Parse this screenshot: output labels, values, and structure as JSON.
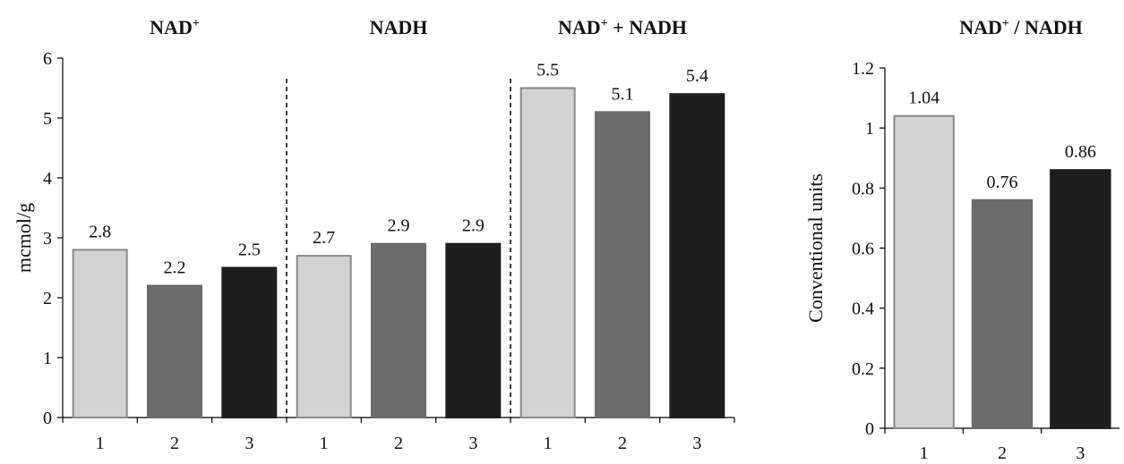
{
  "chart_data": [
    {
      "type": "bar",
      "ylabel": "mcmol/g",
      "ylim": [
        0,
        6
      ],
      "yticks": [
        "0",
        "1",
        "2",
        "3",
        "4",
        "5",
        "6"
      ],
      "categories": [
        "1",
        "2",
        "3"
      ],
      "colors": [
        "#d3d3d3",
        "#6b6b6b",
        "#1e1e1e"
      ],
      "edge_colors": [
        "#8a8a8a",
        "#6b6b6b",
        "#1e1e1e"
      ],
      "groups": [
        {
          "title_base": "NAD",
          "title_sup": "+",
          "title_rest": "",
          "values": [
            2.8,
            2.2,
            2.5
          ],
          "labels": [
            "2.8",
            "2.2",
            "2.5"
          ]
        },
        {
          "title_base": "NADH",
          "title_sup": "",
          "title_rest": "",
          "values": [
            2.7,
            2.9,
            2.9
          ],
          "labels": [
            "2.7",
            "2.9",
            "2.9"
          ]
        },
        {
          "title_base": "NAD",
          "title_sup": "+",
          "title_rest": " + NADH",
          "values": [
            5.5,
            5.1,
            5.4
          ],
          "labels": [
            "5.5",
            "5.1",
            "5.4"
          ]
        }
      ]
    },
    {
      "type": "bar",
      "ylabel": "Conventional units",
      "ylim": [
        0,
        1.2
      ],
      "yticks": [
        "0",
        "0.2",
        "0.4",
        "0.6",
        "0.8",
        "1",
        "1.2"
      ],
      "categories": [
        "1",
        "2",
        "3"
      ],
      "colors": [
        "#d3d3d3",
        "#6b6b6b",
        "#1e1e1e"
      ],
      "edge_colors": [
        "#8a8a8a",
        "#6b6b6b",
        "#1e1e1e"
      ],
      "title_base": "NAD",
      "title_sup": "+",
      "title_rest": " / NADH",
      "values": [
        1.04,
        0.76,
        0.86
      ],
      "labels": [
        "1.04",
        "0.76",
        "0.86"
      ]
    }
  ]
}
